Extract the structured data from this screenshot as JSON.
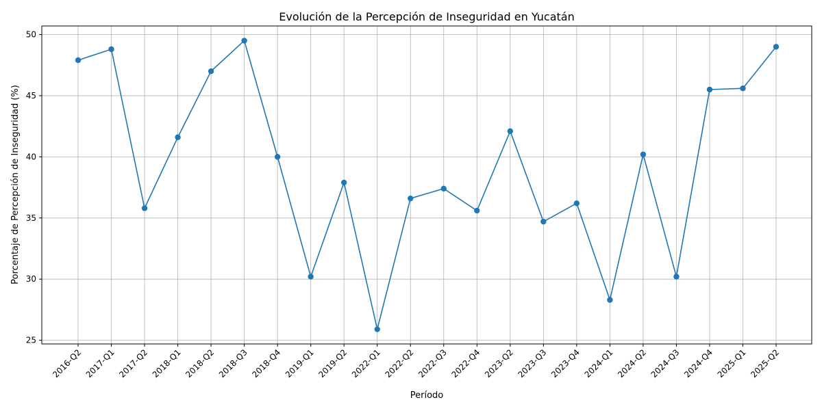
{
  "chart_data": {
    "type": "line",
    "title": "Evolución de la Percepción de Inseguridad en Yucatán",
    "xlabel": "Período",
    "ylabel": "Porcentaje de Percepción de Inseguridad (%)",
    "categories": [
      "2016-Q2",
      "2017-Q1",
      "2017-Q2",
      "2018-Q1",
      "2018-Q2",
      "2018-Q3",
      "2018-Q4",
      "2019-Q1",
      "2019-Q2",
      "2022-Q1",
      "2022-Q2",
      "2022-Q3",
      "2022-Q4",
      "2023-Q2",
      "2023-Q3",
      "2023-Q4",
      "2024-Q1",
      "2024-Q2",
      "2024-Q3",
      "2024-Q4",
      "2025-Q1",
      "2025-Q2"
    ],
    "series": [
      {
        "values": [
          47.9,
          48.8,
          35.8,
          41.6,
          47.0,
          49.5,
          40.0,
          30.2,
          37.9,
          25.9,
          36.6,
          37.4,
          35.6,
          42.1,
          34.7,
          36.2,
          28.3,
          40.2,
          30.2,
          45.5,
          45.6,
          49.0
        ],
        "color": "#1f77b4"
      }
    ],
    "yticks": [
      25,
      30,
      35,
      40,
      45,
      50
    ],
    "ylim": [
      24.7,
      50.7
    ],
    "grid": true,
    "marker": "circle"
  }
}
